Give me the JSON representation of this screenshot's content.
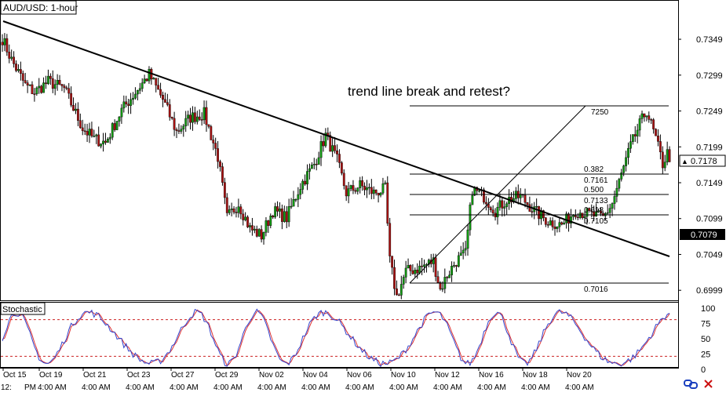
{
  "chart_data": [
    {
      "type": "candlestick",
      "title": "AUD/USD: 1-hour",
      "annotation": "trend line break and retest?",
      "ylim": [
        0.6985,
        0.7395
      ],
      "y_ticks": [
        "0.7349",
        "0.7299",
        "0.7249",
        "0.7199",
        "0.7149",
        "0.7099",
        "0.7049",
        "0.6999"
      ],
      "current_price_label": "0.7178",
      "crosshair_price_label": "0.7079",
      "x_date_labels": [
        "Oct 15",
        "Oct 19",
        "Oct 21",
        "Oct 23",
        "Oct 27",
        "Oct 29",
        "Nov 02",
        "Nov 04",
        "Nov 06",
        "Nov 10",
        "Nov 12",
        "Nov 16",
        "Nov 18",
        "Nov 20"
      ],
      "x_time_labels": [
        "12:",
        "PM",
        "4:00 AM",
        "4:00 AM",
        "4:00 AM",
        "4:00 AM",
        "4:00 AM",
        "4:00 AM",
        "4:00 AM",
        "4:00 AM",
        "4:00 AM",
        "4:00 AM",
        "4:00 AM",
        "4:00 AM",
        "4:00 AM"
      ],
      "trend_line": [
        {
          "x": 0,
          "y": 0.7365
        },
        {
          "x": 310,
          "y": 0.7055
        }
      ],
      "fibonacci": {
        "swing_low": 0.7016,
        "swing_high": 0.725,
        "levels": [
          {
            "ratio": "",
            "value": "7250",
            "price": 0.725
          },
          {
            "ratio": "0.382",
            "value": "0.7161",
            "price": 0.7161
          },
          {
            "ratio": "0.500",
            "value": "0.7133",
            "price": 0.7133
          },
          {
            "ratio": "0.618",
            "value": "0.7105",
            "price": 0.7105
          },
          {
            "ratio": "",
            "value": "0.7016",
            "price": 0.7016
          }
        ]
      },
      "waypoints": [
        [
          0,
          0.735
        ],
        [
          4,
          0.732
        ],
        [
          10,
          0.7285
        ],
        [
          14,
          0.7275
        ],
        [
          20,
          0.729
        ],
        [
          27,
          0.728
        ],
        [
          35,
          0.7225
        ],
        [
          40,
          0.721
        ],
        [
          45,
          0.7205
        ],
        [
          52,
          0.725
        ],
        [
          58,
          0.7275
        ],
        [
          64,
          0.73
        ],
        [
          70,
          0.7265
        ],
        [
          76,
          0.722
        ],
        [
          82,
          0.724
        ],
        [
          88,
          0.7245
        ],
        [
          94,
          0.7185
        ],
        [
          98,
          0.71
        ],
        [
          103,
          0.712
        ],
        [
          108,
          0.7085
        ],
        [
          113,
          0.7075
        ],
        [
          118,
          0.711
        ],
        [
          124,
          0.71
        ],
        [
          130,
          0.7145
        ],
        [
          136,
          0.7175
        ],
        [
          141,
          0.7215
        ],
        [
          146,
          0.718
        ],
        [
          150,
          0.7135
        ],
        [
          156,
          0.7145
        ],
        [
          162,
          0.7135
        ],
        [
          167,
          0.714
        ],
        [
          169,
          0.704
        ],
        [
          172,
          0.699
        ],
        [
          176,
          0.7025
        ],
        [
          182,
          0.703
        ],
        [
          188,
          0.704
        ],
        [
          191,
          0.7
        ],
        [
          194,
          0.702
        ],
        [
          198,
          0.704
        ],
        [
          202,
          0.705
        ],
        [
          205,
          0.714
        ],
        [
          210,
          0.713
        ],
        [
          215,
          0.711
        ],
        [
          220,
          0.7125
        ],
        [
          226,
          0.713
        ],
        [
          232,
          0.711
        ],
        [
          238,
          0.7095
        ],
        [
          244,
          0.709
        ],
        [
          250,
          0.711
        ],
        [
          256,
          0.7105
        ],
        [
          262,
          0.71
        ],
        [
          266,
          0.712
        ],
        [
          270,
          0.716
        ],
        [
          274,
          0.72
        ],
        [
          278,
          0.723
        ],
        [
          281,
          0.725
        ],
        [
          285,
          0.721
        ],
        [
          288,
          0.7175
        ],
        [
          290,
          0.719
        ],
        [
          291,
          0.7178
        ]
      ],
      "stochastic": {
        "label": "Stochastic",
        "ylim": [
          0,
          100
        ],
        "y_ticks": [
          "100",
          "75",
          "50",
          "25",
          "0"
        ],
        "levels": [
          80,
          20
        ],
        "series": [
          {
            "values": []
          },
          {
            "values": []
          }
        ]
      }
    }
  ]
}
